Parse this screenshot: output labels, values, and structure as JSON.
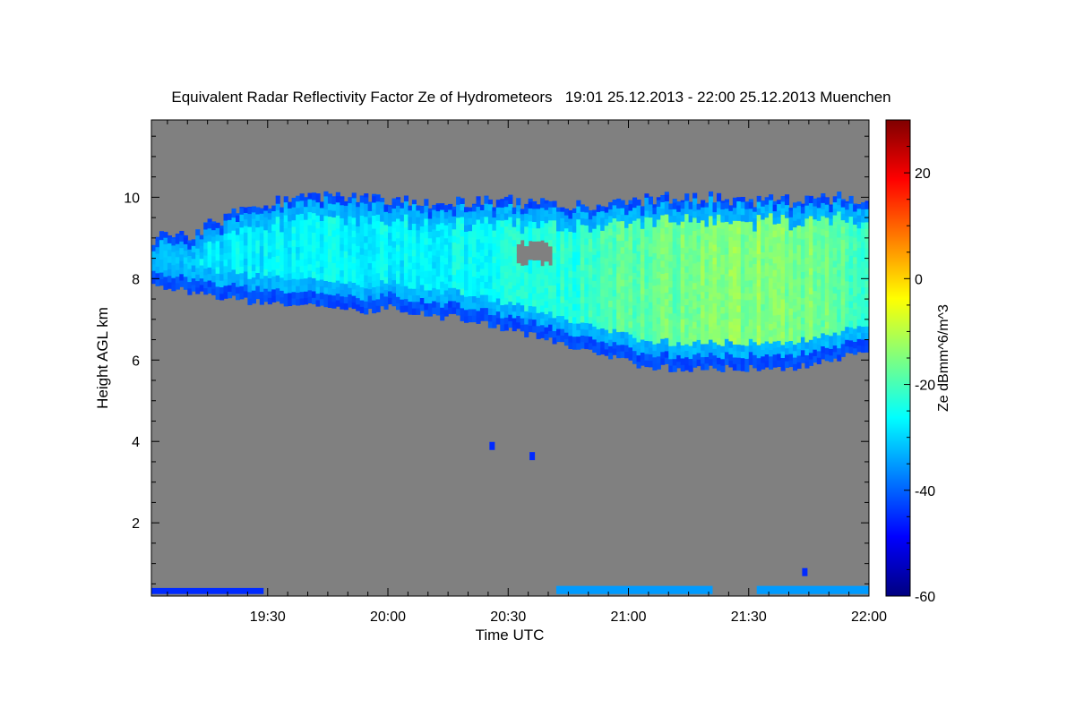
{
  "chart_data": {
    "type": "heatmap",
    "title": "Equivalent Radar Reflectivity Factor Ze of Hydrometeors   19:01 25.12.2013 - 22:00 25.12.2013 Muenchen",
    "xlabel": "Time UTC",
    "ylabel": "Height AGL km",
    "x_unit": "minutes since 19:01 UTC",
    "xlim": [
      0,
      179
    ],
    "ylim": [
      0.2,
      11.9
    ],
    "xticks": [
      {
        "value": 29,
        "label": "19:30"
      },
      {
        "value": 59,
        "label": "20:00"
      },
      {
        "value": 89,
        "label": "20:30"
      },
      {
        "value": 119,
        "label": "21:00"
      },
      {
        "value": 149,
        "label": "21:30"
      },
      {
        "value": 179,
        "label": "22:00"
      }
    ],
    "yticks": [
      {
        "value": 2,
        "label": "2"
      },
      {
        "value": 4,
        "label": "4"
      },
      {
        "value": 6,
        "label": "6"
      },
      {
        "value": 8,
        "label": "8"
      },
      {
        "value": 10,
        "label": "10"
      }
    ],
    "background_color": "#808080",
    "colorbar": {
      "label": "Ze dBmm^6/m^3",
      "range": [
        -60,
        30
      ],
      "ticks": [
        {
          "value": -60,
          "label": "-60"
        },
        {
          "value": -40,
          "label": "-40"
        },
        {
          "value": -20,
          "label": "-20"
        },
        {
          "value": 0,
          "label": "0"
        },
        {
          "value": 20,
          "label": "20"
        }
      ],
      "colors": [
        "#00007f",
        "#0000ff",
        "#007fff",
        "#00ffff",
        "#7fff7f",
        "#ffff00",
        "#ff7f00",
        "#ff0000",
        "#7f0000"
      ]
    },
    "cloud_layer": {
      "time_minutes": [
        0,
        10,
        20,
        30,
        40,
        50,
        60,
        70,
        80,
        90,
        100,
        110,
        120,
        130,
        140,
        150,
        160,
        170,
        179
      ],
      "top_km": [
        9.0,
        9.1,
        9.6,
        9.9,
        10.0,
        10.0,
        9.9,
        9.8,
        9.9,
        9.9,
        9.8,
        9.8,
        9.9,
        10.0,
        10.0,
        9.9,
        9.9,
        10.0,
        9.9
      ],
      "base_km": [
        7.8,
        7.7,
        7.5,
        7.4,
        7.3,
        7.2,
        7.3,
        7.1,
        7.0,
        6.7,
        6.5,
        6.2,
        5.9,
        5.8,
        5.8,
        5.8,
        5.8,
        6.0,
        6.3
      ],
      "core_ze_dbz": [
        -30,
        -29,
        -28,
        -27,
        -27,
        -26,
        -27,
        -27,
        -26,
        -25,
        -24,
        -21,
        -18,
        -17,
        -15,
        -14,
        -15,
        -17,
        -21
      ]
    },
    "near_surface_echo": [
      {
        "t0": 0,
        "t1": 28,
        "bottom_km": 0.25,
        "top_km": 0.4,
        "ze_dbz": -45
      },
      {
        "t0": 101,
        "t1": 140,
        "bottom_km": 0.25,
        "top_km": 0.45,
        "ze_dbz": -35
      },
      {
        "t0": 151,
        "t1": 179,
        "bottom_km": 0.25,
        "top_km": 0.45,
        "ze_dbz": -35
      }
    ],
    "isolated_echoes": [
      {
        "t": 85,
        "h_km": 3.9,
        "ze_dbz": -45
      },
      {
        "t": 95,
        "h_km": 3.65,
        "ze_dbz": -45
      },
      {
        "t": 163,
        "h_km": 0.8,
        "ze_dbz": -45
      }
    ],
    "holes": [
      {
        "t0": 91,
        "t1": 99,
        "bottom_km": 8.3,
        "top_km": 8.8
      }
    ]
  }
}
